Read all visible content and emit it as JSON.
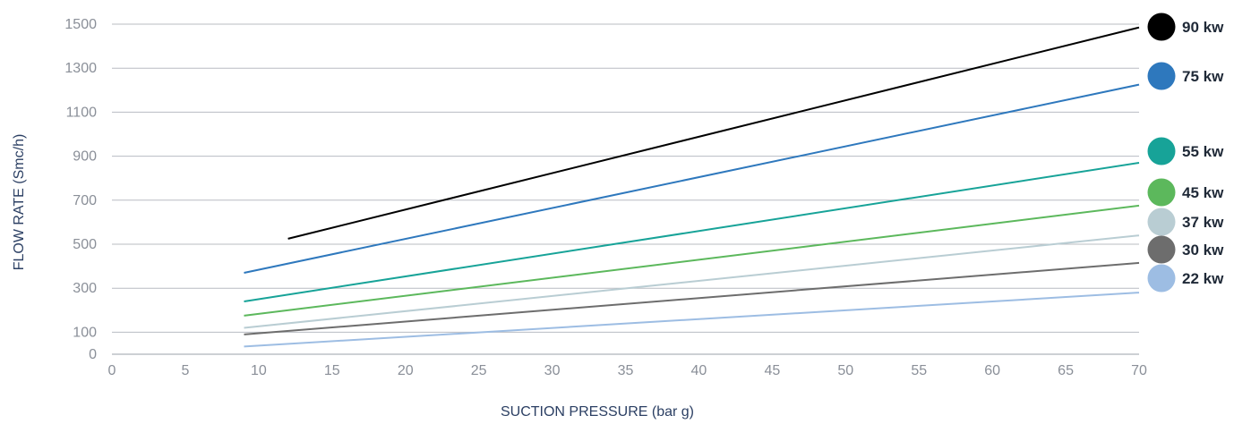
{
  "chart_data": {
    "type": "line",
    "title": "",
    "xlabel": "SUCTION PRESSURE (bar g)",
    "ylabel": "FLOW RATE (Smc/h)",
    "xlim": [
      0,
      70
    ],
    "ylim": [
      0,
      1500
    ],
    "x_ticks": [
      0,
      5,
      10,
      15,
      20,
      25,
      30,
      35,
      40,
      45,
      50,
      55,
      60,
      65,
      70
    ],
    "y_ticks": [
      0,
      100,
      300,
      500,
      700,
      900,
      1100,
      1300,
      1500
    ],
    "grid": "horizontal",
    "legend_position": "right",
    "series": [
      {
        "name": "90 kw",
        "color": "#000000",
        "points": [
          [
            12,
            525
          ],
          [
            70,
            1485
          ]
        ]
      },
      {
        "name": "75 kw",
        "color": "#2e78bd",
        "points": [
          [
            9,
            370
          ],
          [
            70,
            1225
          ]
        ]
      },
      {
        "name": "55 kw",
        "color": "#17a398",
        "points": [
          [
            9,
            240
          ],
          [
            70,
            870
          ]
        ]
      },
      {
        "name": "45 kw",
        "color": "#5cb85c",
        "points": [
          [
            9,
            175
          ],
          [
            70,
            675
          ]
        ]
      },
      {
        "name": "37 kw",
        "color": "#b9cdd3",
        "points": [
          [
            9,
            120
          ],
          [
            70,
            540
          ]
        ]
      },
      {
        "name": "30 kw",
        "color": "#6d6d6d",
        "points": [
          [
            9,
            90
          ],
          [
            70,
            415
          ]
        ]
      },
      {
        "name": "22 kw",
        "color": "#9dbde3",
        "points": [
          [
            9,
            35
          ],
          [
            70,
            280
          ]
        ]
      }
    ]
  }
}
